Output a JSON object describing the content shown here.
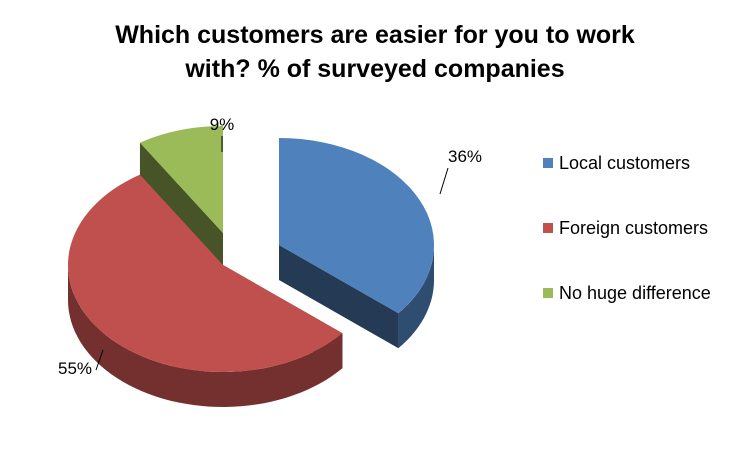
{
  "chart_data": {
    "type": "pie",
    "title_lines": [
      "Which customers are easier for you to work",
      "with? % of surveyed companies"
    ],
    "categories": [
      "Local customers",
      "Foreign customers",
      "No huge difference"
    ],
    "values": [
      36,
      55,
      9
    ],
    "data_labels": [
      "36%",
      "55%",
      "9%"
    ],
    "colors": [
      "#4F81BD",
      "#C0504D",
      "#9BBB59"
    ],
    "style": "3d-exploded",
    "legend_position": "right"
  }
}
